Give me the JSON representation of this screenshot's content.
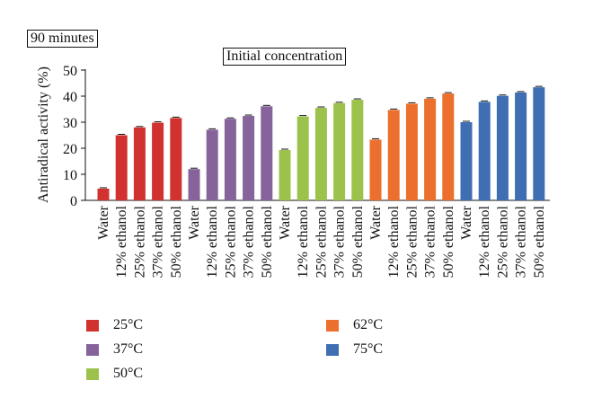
{
  "corner_label": "90 minutes",
  "chart_data": {
    "type": "bar",
    "title": "Initial concentration",
    "xlabel": "",
    "ylabel": "Antiradical activity (%)",
    "ylim": [
      0,
      50
    ],
    "yticks": [
      0,
      10,
      20,
      30,
      40,
      50
    ],
    "grid": false,
    "error_bars": true,
    "legend_position": "bottom",
    "categories": [
      "Water",
      "12% ethanol",
      "25% ethanol",
      "37% ethanol",
      "50% ethanol"
    ],
    "series": [
      {
        "name": "25°C",
        "color": "#d1322f",
        "values": [
          4.5,
          25.0,
          28.0,
          29.8,
          31.6
        ]
      },
      {
        "name": "37°C",
        "color": "#86639a",
        "values": [
          12.0,
          27.1,
          31.3,
          32.4,
          36.1
        ]
      },
      {
        "name": "50°C",
        "color": "#9cc24c",
        "values": [
          19.3,
          32.2,
          35.5,
          37.3,
          38.6
        ]
      },
      {
        "name": "62°C",
        "color": "#ed6f2d",
        "values": [
          23.3,
          34.7,
          37.1,
          39.0,
          41.0
        ]
      },
      {
        "name": "75°C",
        "color": "#3f6eb2",
        "values": [
          30.0,
          37.8,
          40.1,
          41.4,
          43.4
        ]
      }
    ]
  }
}
